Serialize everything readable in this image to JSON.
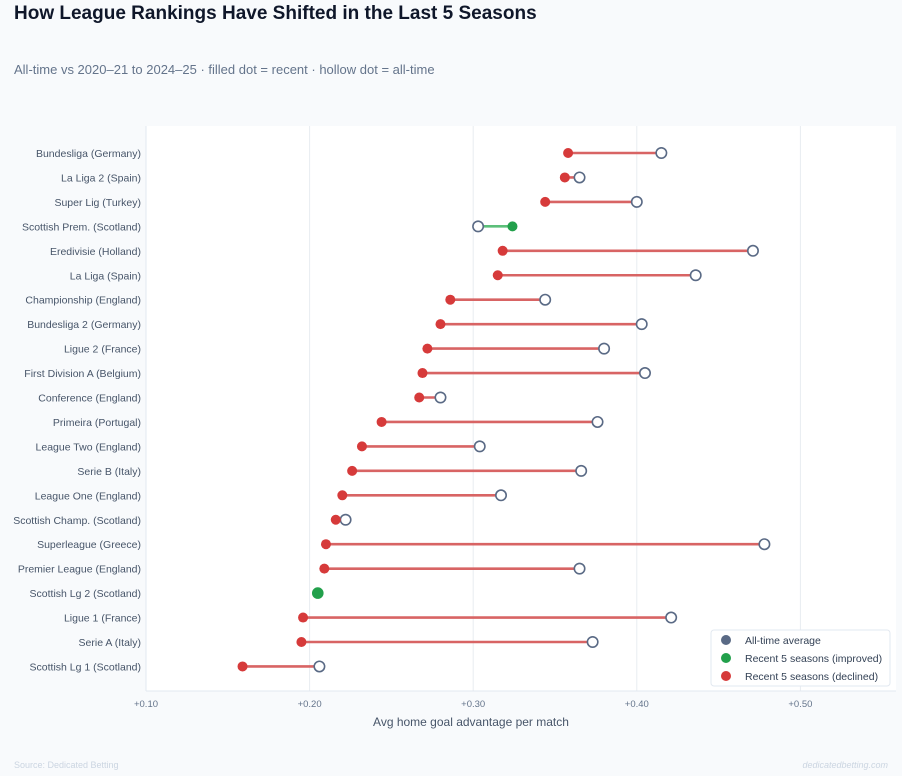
{
  "title": "How League Rankings Have Shifted in the Last 5 Seasons",
  "subtitle": "All-time vs 2020–21 to 2024–25 · filled dot = recent · hollow dot = all-time",
  "source": "Source: Dedicated Betting",
  "brand": "dedicatedbetting.com",
  "colors": {
    "alltime": "#5a6a85",
    "improved": "#22a04b",
    "declined": "#d63a3a",
    "declined_line": "#d86464",
    "improved_line": "#5cbf7a"
  },
  "chart_data": {
    "type": "dumbbell",
    "xlabel": "Avg home goal advantage per match",
    "xlim": [
      0.1,
      0.56
    ],
    "xticks": [
      0.1,
      0.2,
      0.3,
      0.4,
      0.5
    ],
    "xtick_labels": [
      "+0.10",
      "+0.20",
      "+0.30",
      "+0.40",
      "+0.50"
    ],
    "grid": true,
    "legend_position": "bottom-right",
    "legend": [
      "All-time average",
      "Recent 5 seasons (improved)",
      "Recent 5 seasons (declined)"
    ],
    "rows": [
      {
        "label": "Bundesliga  (Germany)",
        "alltime": 0.415,
        "recent": 0.358
      },
      {
        "label": "La Liga 2  (Spain)",
        "alltime": 0.365,
        "recent": 0.356
      },
      {
        "label": "Super Lig  (Turkey)",
        "alltime": 0.4,
        "recent": 0.344
      },
      {
        "label": "Scottish Prem.  (Scotland)",
        "alltime": 0.303,
        "recent": 0.324
      },
      {
        "label": "Eredivisie  (Holland)",
        "alltime": 0.471,
        "recent": 0.318
      },
      {
        "label": "La Liga  (Spain)",
        "alltime": 0.436,
        "recent": 0.315
      },
      {
        "label": "Championship  (England)",
        "alltime": 0.344,
        "recent": 0.286
      },
      {
        "label": "Bundesliga 2  (Germany)",
        "alltime": 0.403,
        "recent": 0.28
      },
      {
        "label": "Ligue 2  (France)",
        "alltime": 0.38,
        "recent": 0.272
      },
      {
        "label": "First Division A  (Belgium)",
        "alltime": 0.405,
        "recent": 0.269
      },
      {
        "label": "Conference  (England)",
        "alltime": 0.28,
        "recent": 0.267
      },
      {
        "label": "Primeira  (Portugal)",
        "alltime": 0.376,
        "recent": 0.244
      },
      {
        "label": "League Two  (England)",
        "alltime": 0.304,
        "recent": 0.232
      },
      {
        "label": "Serie B  (Italy)",
        "alltime": 0.366,
        "recent": 0.226
      },
      {
        "label": "League One  (England)",
        "alltime": 0.317,
        "recent": 0.22
      },
      {
        "label": "Scottish Champ.  (Scotland)",
        "alltime": 0.222,
        "recent": 0.216
      },
      {
        "label": "Superleague  (Greece)",
        "alltime": 0.478,
        "recent": 0.21
      },
      {
        "label": "Premier League  (England)",
        "alltime": 0.365,
        "recent": 0.209
      },
      {
        "label": "Scottish Lg 2  (Scotland)",
        "alltime": 0.205,
        "recent": 0.205
      },
      {
        "label": "Ligue 1  (France)",
        "alltime": 0.421,
        "recent": 0.196
      },
      {
        "label": "Serie A  (Italy)",
        "alltime": 0.373,
        "recent": 0.195
      },
      {
        "label": "Scottish Lg 1  (Scotland)",
        "alltime": 0.206,
        "recent": 0.159
      }
    ]
  }
}
